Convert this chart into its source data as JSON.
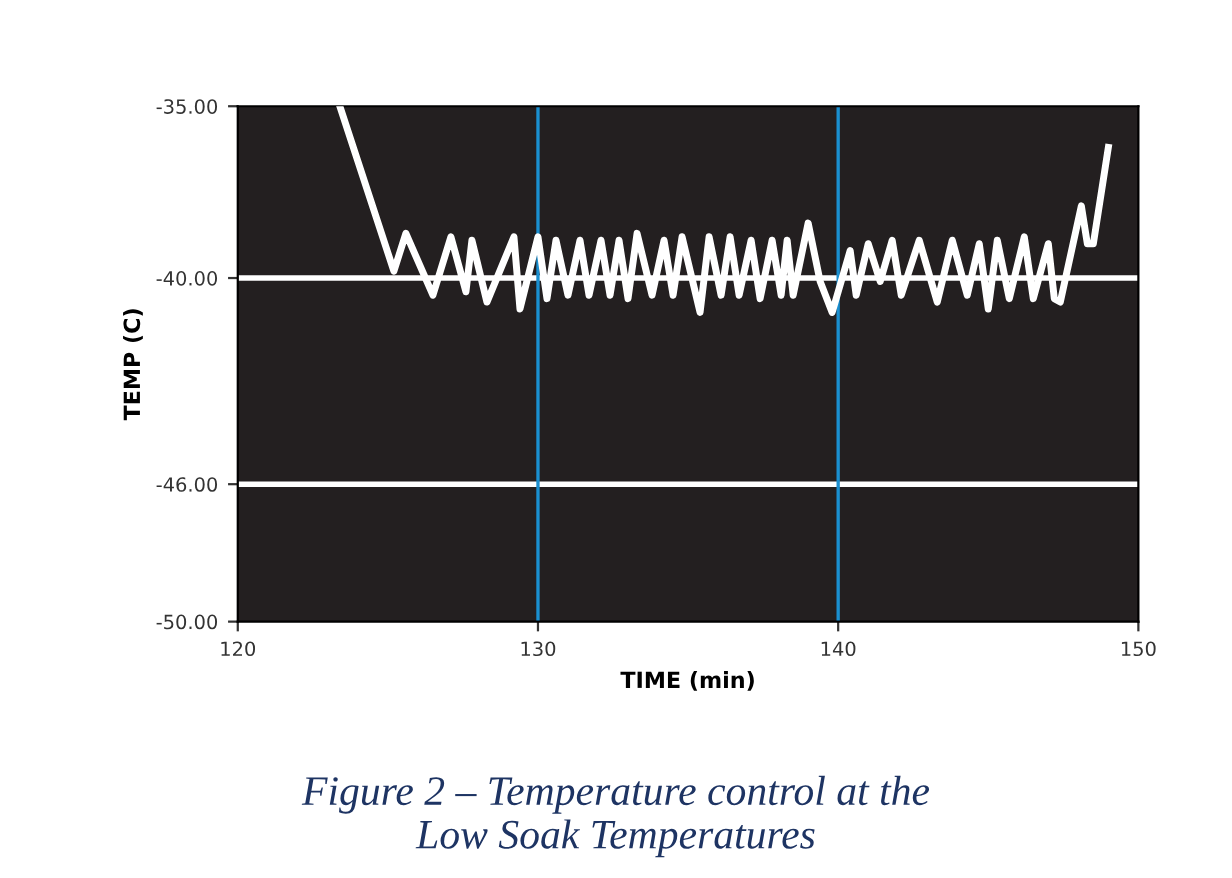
{
  "chart_data": {
    "type": "line",
    "xlabel": "TIME (min)",
    "ylabel": "TEMP (C)",
    "annotations": [
      "Figure 2 – Temperature control at the\nLow Soak Temperatures"
    ],
    "xlim": [
      120,
      150
    ],
    "xticks": [
      120,
      130,
      140,
      150
    ],
    "ylim": [
      -50,
      -35
    ],
    "yticks": [
      {
        "value": -35,
        "label": "-35.00"
      },
      {
        "value": -40,
        "label": "-40.00"
      },
      {
        "value": -46,
        "label": "-46.00"
      },
      {
        "value": -50,
        "label": "-50.00"
      }
    ],
    "grid": false,
    "marker": "none",
    "line_style": "solid",
    "ref_lines": [
      {
        "axis": "y",
        "value": -40,
        "label": null,
        "color": "#ffffff"
      },
      {
        "axis": "y",
        "value": -46,
        "label": null,
        "color": "#ffffff"
      },
      {
        "axis": "x",
        "value": 130,
        "label": null,
        "color": "#1a8fd0"
      },
      {
        "axis": "x",
        "value": 140,
        "label": null,
        "color": "#1a8fd0"
      }
    ],
    "series": [
      {
        "color": "#ffffff",
        "x": [
          123.4,
          125.2,
          125.6,
          126.5,
          127.1,
          127.6,
          127.8,
          128.3,
          129.2,
          129.4,
          130.0,
          130.3,
          130.6,
          131.0,
          131.4,
          131.7,
          132.1,
          132.4,
          132.7,
          133.0,
          133.3,
          133.8,
          134.2,
          134.5,
          134.8,
          135.4,
          135.7,
          136.1,
          136.4,
          136.7,
          137.1,
          137.4,
          137.8,
          138.1,
          138.3,
          138.5,
          139.0,
          139.4,
          139.8,
          140.4,
          140.6,
          141.0,
          141.4,
          141.8,
          142.1,
          142.7,
          143.3,
          143.8,
          144.3,
          144.7,
          145.0,
          145.3,
          145.7,
          146.2,
          146.5,
          147.0,
          147.2,
          147.4,
          148.1,
          148.3,
          148.5,
          149.0
        ],
        "values": [
          -35.0,
          -39.8,
          -38.7,
          -40.5,
          -38.8,
          -40.4,
          -38.9,
          -40.7,
          -38.8,
          -40.9,
          -38.8,
          -40.6,
          -38.9,
          -40.5,
          -38.9,
          -40.5,
          -38.9,
          -40.5,
          -38.9,
          -40.6,
          -38.7,
          -40.5,
          -38.9,
          -40.5,
          -38.8,
          -41.0,
          -38.8,
          -40.5,
          -38.8,
          -40.5,
          -38.9,
          -40.6,
          -38.9,
          -40.5,
          -38.9,
          -40.5,
          -38.4,
          -40.1,
          -41.0,
          -39.2,
          -40.5,
          -39.0,
          -40.1,
          -38.9,
          -40.5,
          -38.9,
          -40.7,
          -38.9,
          -40.5,
          -39.0,
          -40.9,
          -38.9,
          -40.6,
          -38.8,
          -40.6,
          -39.0,
          -40.6,
          -40.7,
          -37.9,
          -39.0,
          -39.0,
          -36.2
        ]
      }
    ]
  }
}
